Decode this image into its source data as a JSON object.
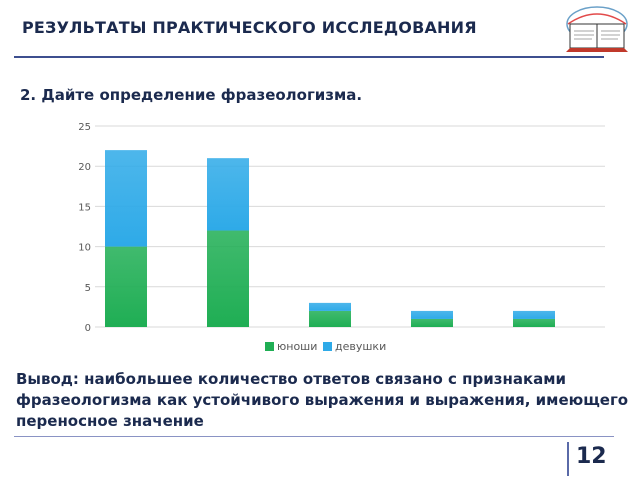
{
  "header": {
    "title": "РЕЗУЛЬТАТЫ ПРАКТИЧЕСКОГО ИССЛЕДОВАНИЯ",
    "logo_icon": "book-logo-icon"
  },
  "question": "2. Дайте определение фразеологизма.",
  "chart_data": {
    "type": "bar",
    "stacked": true,
    "categories": [
      "",
      "",
      "",
      "",
      ""
    ],
    "series": [
      {
        "name": "юноши",
        "values": [
          10,
          12,
          2,
          1,
          1
        ],
        "color": "#1fae54"
      },
      {
        "name": "девушки",
        "values": [
          12,
          9,
          1,
          1,
          1
        ],
        "color": "#2eaae8"
      }
    ],
    "ylim": [
      0,
      25
    ],
    "yticks": [
      "0",
      "5",
      "10",
      "15",
      "20",
      "25"
    ],
    "grid": true,
    "legend_position": "bottom"
  },
  "conclusion": "Вывод: наибольшее количество ответов связано с признаками фразеологизма как устойчивого выражения и выражения, имеющего переносное значение",
  "footer": {
    "page_number": "12"
  }
}
